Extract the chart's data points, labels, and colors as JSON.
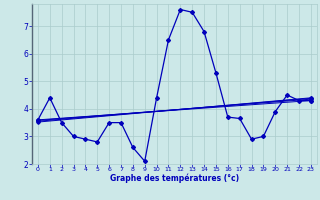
{
  "background_color": "#cce8e8",
  "grid_color": "#aacccc",
  "line_color": "#0000bb",
  "xlabel": "Graphe des temératures (°c)",
  "xlabel_display": "Graphe des températures (°c)",
  "ylim": [
    2.0,
    7.8
  ],
  "xlim": [
    -0.5,
    23.5
  ],
  "yticks": [
    2,
    3,
    4,
    5,
    6,
    7
  ],
  "xticks": [
    0,
    1,
    2,
    3,
    4,
    5,
    6,
    7,
    8,
    9,
    10,
    11,
    12,
    13,
    14,
    15,
    16,
    17,
    18,
    19,
    20,
    21,
    22,
    23
  ],
  "main_x": [
    0,
    1,
    2,
    3,
    4,
    5,
    6,
    7,
    8,
    9,
    10,
    11,
    12,
    13,
    14,
    15,
    16,
    17,
    18,
    19,
    20,
    21,
    22,
    23
  ],
  "main_y": [
    3.6,
    4.4,
    3.5,
    3.0,
    2.9,
    2.8,
    3.5,
    3.5,
    2.6,
    2.1,
    4.4,
    6.5,
    7.6,
    7.5,
    6.8,
    5.3,
    3.7,
    3.65,
    2.9,
    3.0,
    3.9,
    4.5,
    4.3,
    4.3
  ],
  "trend_lines": [
    {
      "x": [
        0,
        23
      ],
      "y": [
        3.6,
        4.3
      ]
    },
    {
      "x": [
        0,
        23
      ],
      "y": [
        3.58,
        4.35
      ]
    },
    {
      "x": [
        0,
        23
      ],
      "y": [
        3.55,
        4.38
      ]
    },
    {
      "x": [
        0,
        23
      ],
      "y": [
        3.52,
        4.4
      ]
    }
  ],
  "figsize": [
    3.2,
    2.0
  ],
  "dpi": 100
}
